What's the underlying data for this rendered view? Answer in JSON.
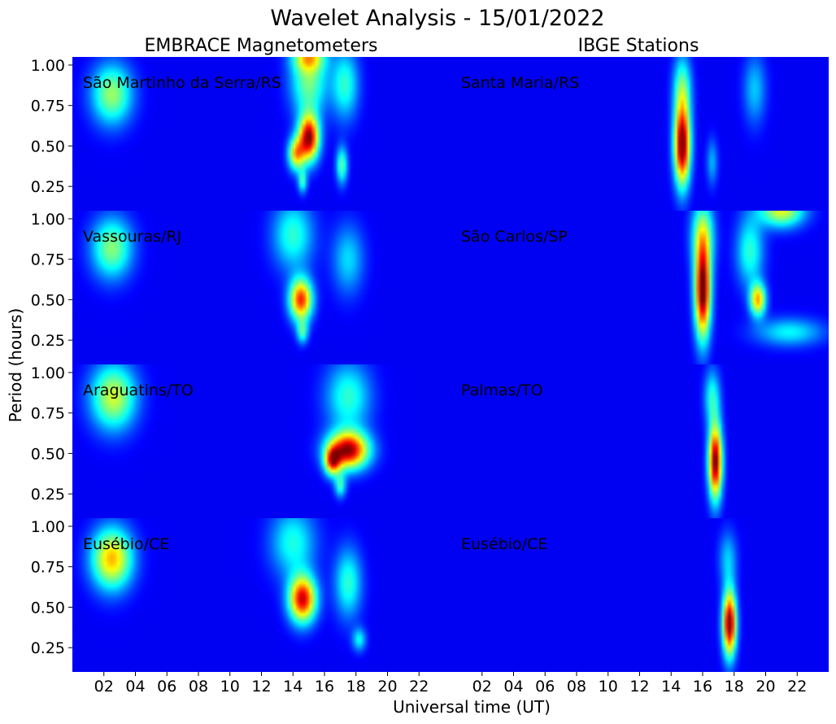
{
  "title": "Wavelet Analysis - 15/01/2022",
  "column_titles": [
    "EMBRACE Magnetometers",
    "IBGE Stations"
  ],
  "xlabel": "Universal time (UT)",
  "ylabel": "Period (hours)",
  "colormap": {
    "name": "jet",
    "stops": [
      "#00007f",
      "#0000ff",
      "#00ffff",
      "#ffff00",
      "#ff0000",
      "#7f0000"
    ]
  },
  "chart_data": {
    "type": "heatmap",
    "x_ticks": [
      "02",
      "04",
      "06",
      "08",
      "10",
      "12",
      "14",
      "16",
      "18",
      "20",
      "22"
    ],
    "x_tick_values": [
      2,
      4,
      6,
      8,
      10,
      12,
      14,
      16,
      18,
      20,
      22
    ],
    "xlim": [
      0,
      24
    ],
    "y_ticks": [
      "0.25",
      "0.50",
      "0.75",
      "1.00"
    ],
    "y_tick_values": [
      0.25,
      0.5,
      0.75,
      1.0
    ],
    "ylim": [
      0.1,
      1.05
    ],
    "panels": [
      {
        "row": 0,
        "col": 0,
        "station": "São Martinho da Serra/RS",
        "blobs": [
          {
            "t": 2.5,
            "p": 0.82,
            "st": 0.9,
            "sp": 0.13,
            "a": 0.42
          },
          {
            "t": 15.0,
            "p": 0.55,
            "st": 0.45,
            "sp": 0.1,
            "a": 0.88
          },
          {
            "t": 14.2,
            "p": 0.45,
            "st": 0.35,
            "sp": 0.07,
            "a": 0.55
          },
          {
            "t": 15.0,
            "p": 0.9,
            "st": 0.8,
            "sp": 0.15,
            "a": 0.38
          },
          {
            "t": 15.0,
            "p": 1.05,
            "st": 0.7,
            "sp": 0.06,
            "a": 0.42
          },
          {
            "t": 17.3,
            "p": 0.88,
            "st": 0.6,
            "sp": 0.15,
            "a": 0.3
          },
          {
            "t": 17.1,
            "p": 0.38,
            "st": 0.25,
            "sp": 0.08,
            "a": 0.35
          },
          {
            "t": 14.6,
            "p": 0.28,
            "st": 0.2,
            "sp": 0.05,
            "a": 0.3
          }
        ]
      },
      {
        "row": 0,
        "col": 1,
        "station": "Santa Maria/RS",
        "blobs": [
          {
            "t": 14.7,
            "p": 0.5,
            "st": 0.35,
            "sp": 0.17,
            "a": 0.95
          },
          {
            "t": 14.7,
            "p": 0.85,
            "st": 0.4,
            "sp": 0.15,
            "a": 0.35
          },
          {
            "t": 19.3,
            "p": 0.85,
            "st": 0.5,
            "sp": 0.15,
            "a": 0.2
          },
          {
            "t": 16.6,
            "p": 0.4,
            "st": 0.25,
            "sp": 0.1,
            "a": 0.18
          }
        ]
      },
      {
        "row": 1,
        "col": 0,
        "station": "Vassouras/RJ",
        "blobs": [
          {
            "t": 2.5,
            "p": 0.82,
            "st": 0.9,
            "sp": 0.13,
            "a": 0.4
          },
          {
            "t": 14.5,
            "p": 0.5,
            "st": 0.5,
            "sp": 0.09,
            "a": 0.75
          },
          {
            "t": 14.0,
            "p": 0.9,
            "st": 0.9,
            "sp": 0.15,
            "a": 0.3
          },
          {
            "t": 14.6,
            "p": 0.3,
            "st": 0.25,
            "sp": 0.05,
            "a": 0.3
          },
          {
            "t": 17.5,
            "p": 0.75,
            "st": 0.7,
            "sp": 0.15,
            "a": 0.22
          }
        ]
      },
      {
        "row": 1,
        "col": 1,
        "station": "São Carlos/SP",
        "blobs": [
          {
            "t": 16.0,
            "p": 0.55,
            "st": 0.35,
            "sp": 0.2,
            "a": 0.95
          },
          {
            "t": 16.0,
            "p": 0.9,
            "st": 0.5,
            "sp": 0.15,
            "a": 0.4
          },
          {
            "t": 19.5,
            "p": 0.5,
            "st": 0.35,
            "sp": 0.07,
            "a": 0.6
          },
          {
            "t": 19.0,
            "p": 0.8,
            "st": 0.6,
            "sp": 0.15,
            "a": 0.3
          },
          {
            "t": 21.0,
            "p": 1.05,
            "st": 1.0,
            "sp": 0.07,
            "a": 0.5
          },
          {
            "t": 21.5,
            "p": 0.3,
            "st": 1.5,
            "sp": 0.06,
            "a": 0.25
          }
        ]
      },
      {
        "row": 2,
        "col": 0,
        "station": "Araguatins/TO",
        "blobs": [
          {
            "t": 2.6,
            "p": 0.85,
            "st": 1.0,
            "sp": 0.14,
            "a": 0.48
          },
          {
            "t": 17.5,
            "p": 0.52,
            "st": 0.9,
            "sp": 0.08,
            "a": 0.88
          },
          {
            "t": 16.5,
            "p": 0.45,
            "st": 0.35,
            "sp": 0.06,
            "a": 0.6
          },
          {
            "t": 17.5,
            "p": 0.85,
            "st": 1.0,
            "sp": 0.15,
            "a": 0.3
          },
          {
            "t": 17.0,
            "p": 0.3,
            "st": 0.25,
            "sp": 0.05,
            "a": 0.3
          }
        ]
      },
      {
        "row": 2,
        "col": 1,
        "station": "Palmas/TO",
        "blobs": [
          {
            "t": 16.8,
            "p": 0.45,
            "st": 0.3,
            "sp": 0.16,
            "a": 0.93
          },
          {
            "t": 16.6,
            "p": 0.85,
            "st": 0.35,
            "sp": 0.12,
            "a": 0.28
          }
        ]
      },
      {
        "row": 3,
        "col": 0,
        "station": "Eusébio/CE",
        "blobs": [
          {
            "t": 2.5,
            "p": 0.8,
            "st": 0.9,
            "sp": 0.13,
            "a": 0.6
          },
          {
            "t": 14.6,
            "p": 0.55,
            "st": 0.6,
            "sp": 0.1,
            "a": 0.82
          },
          {
            "t": 14.0,
            "p": 0.9,
            "st": 1.0,
            "sp": 0.15,
            "a": 0.28
          },
          {
            "t": 17.5,
            "p": 0.65,
            "st": 0.6,
            "sp": 0.15,
            "a": 0.3
          },
          {
            "t": 18.2,
            "p": 0.3,
            "st": 0.3,
            "sp": 0.05,
            "a": 0.25
          }
        ]
      },
      {
        "row": 3,
        "col": 1,
        "station": "Eusébio/CE",
        "blobs": [
          {
            "t": 17.7,
            "p": 0.4,
            "st": 0.3,
            "sp": 0.14,
            "a": 0.93
          },
          {
            "t": 17.6,
            "p": 0.8,
            "st": 0.4,
            "sp": 0.12,
            "a": 0.2
          }
        ]
      }
    ]
  }
}
